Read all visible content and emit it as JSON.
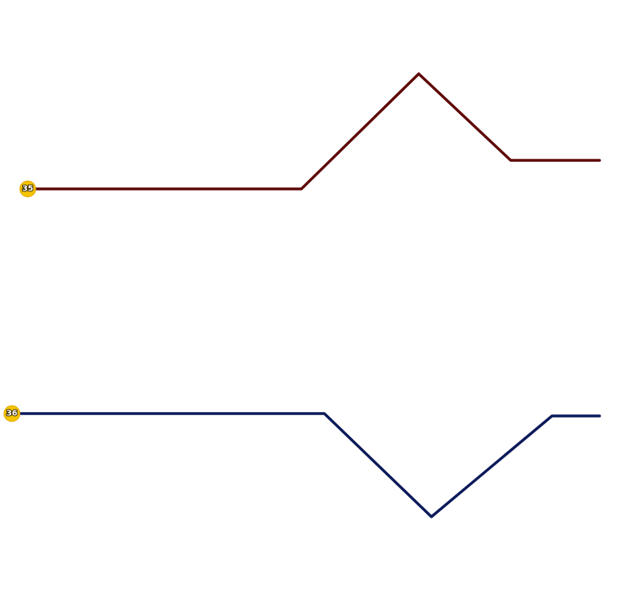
{
  "routes": [
    {
      "label": "35"
    },
    {
      "label": "36"
    }
  ]
}
